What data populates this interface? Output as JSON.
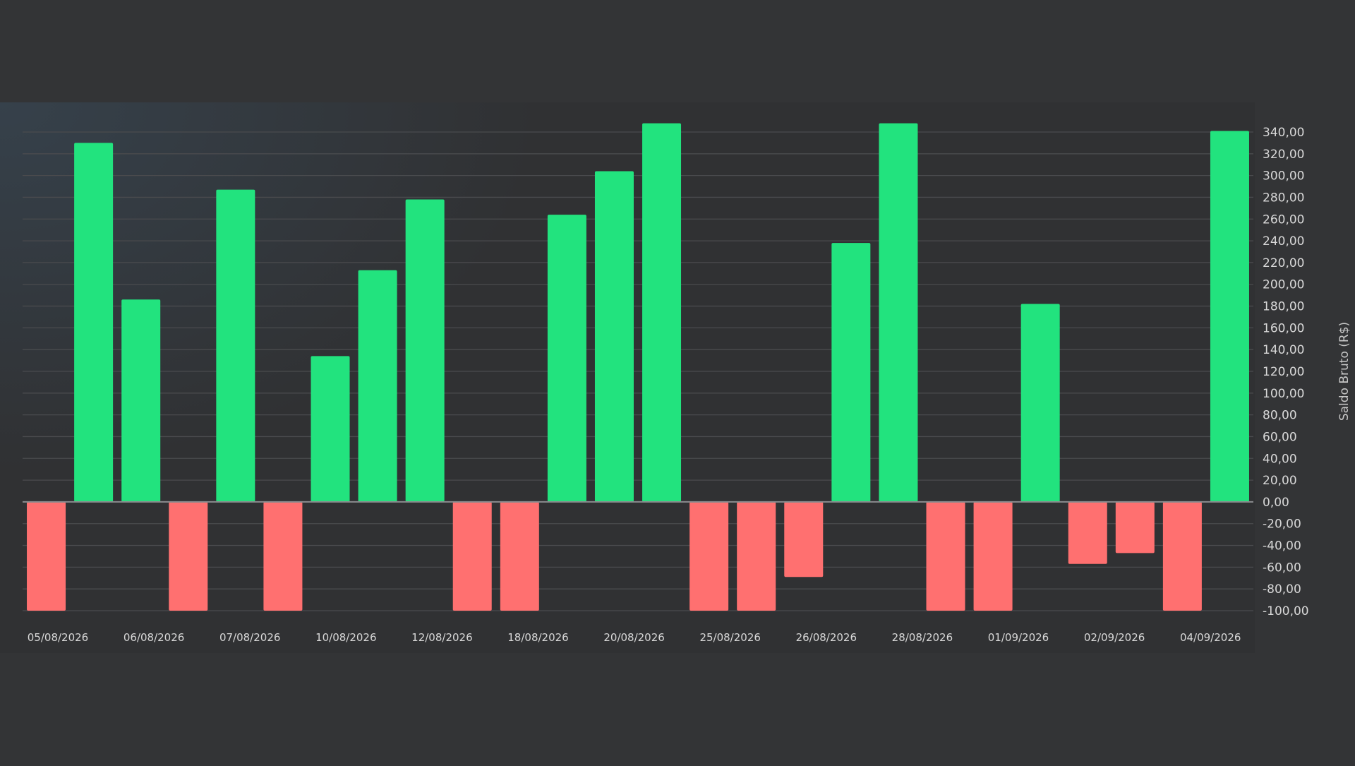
{
  "chart_data": {
    "type": "bar",
    "ylabel": "Saldo Bruto (R$)",
    "ylim": [
      -100,
      340
    ],
    "ytick_step": 20,
    "grid": true,
    "y_axis_position": "right",
    "colors": {
      "positive": "#22e37e",
      "negative": "#ff7070",
      "background": "#333436",
      "plot_background": "#303133"
    },
    "x_tick_labels": [
      "05/08/2026",
      "06/08/2026",
      "07/08/2026",
      "10/08/2026",
      "12/08/2026",
      "18/08/2026",
      "20/08/2026",
      "25/08/2026",
      "26/08/2026",
      "28/08/2026",
      "01/09/2026",
      "02/09/2026",
      "04/09/2026"
    ],
    "values": [
      -100,
      330,
      186,
      -100,
      287,
      -100,
      134,
      213,
      278,
      -100,
      -100,
      264,
      304,
      348,
      -100,
      -100,
      -69,
      238,
      348,
      -100,
      -100,
      182,
      -57,
      -47,
      -100,
      341
    ]
  }
}
